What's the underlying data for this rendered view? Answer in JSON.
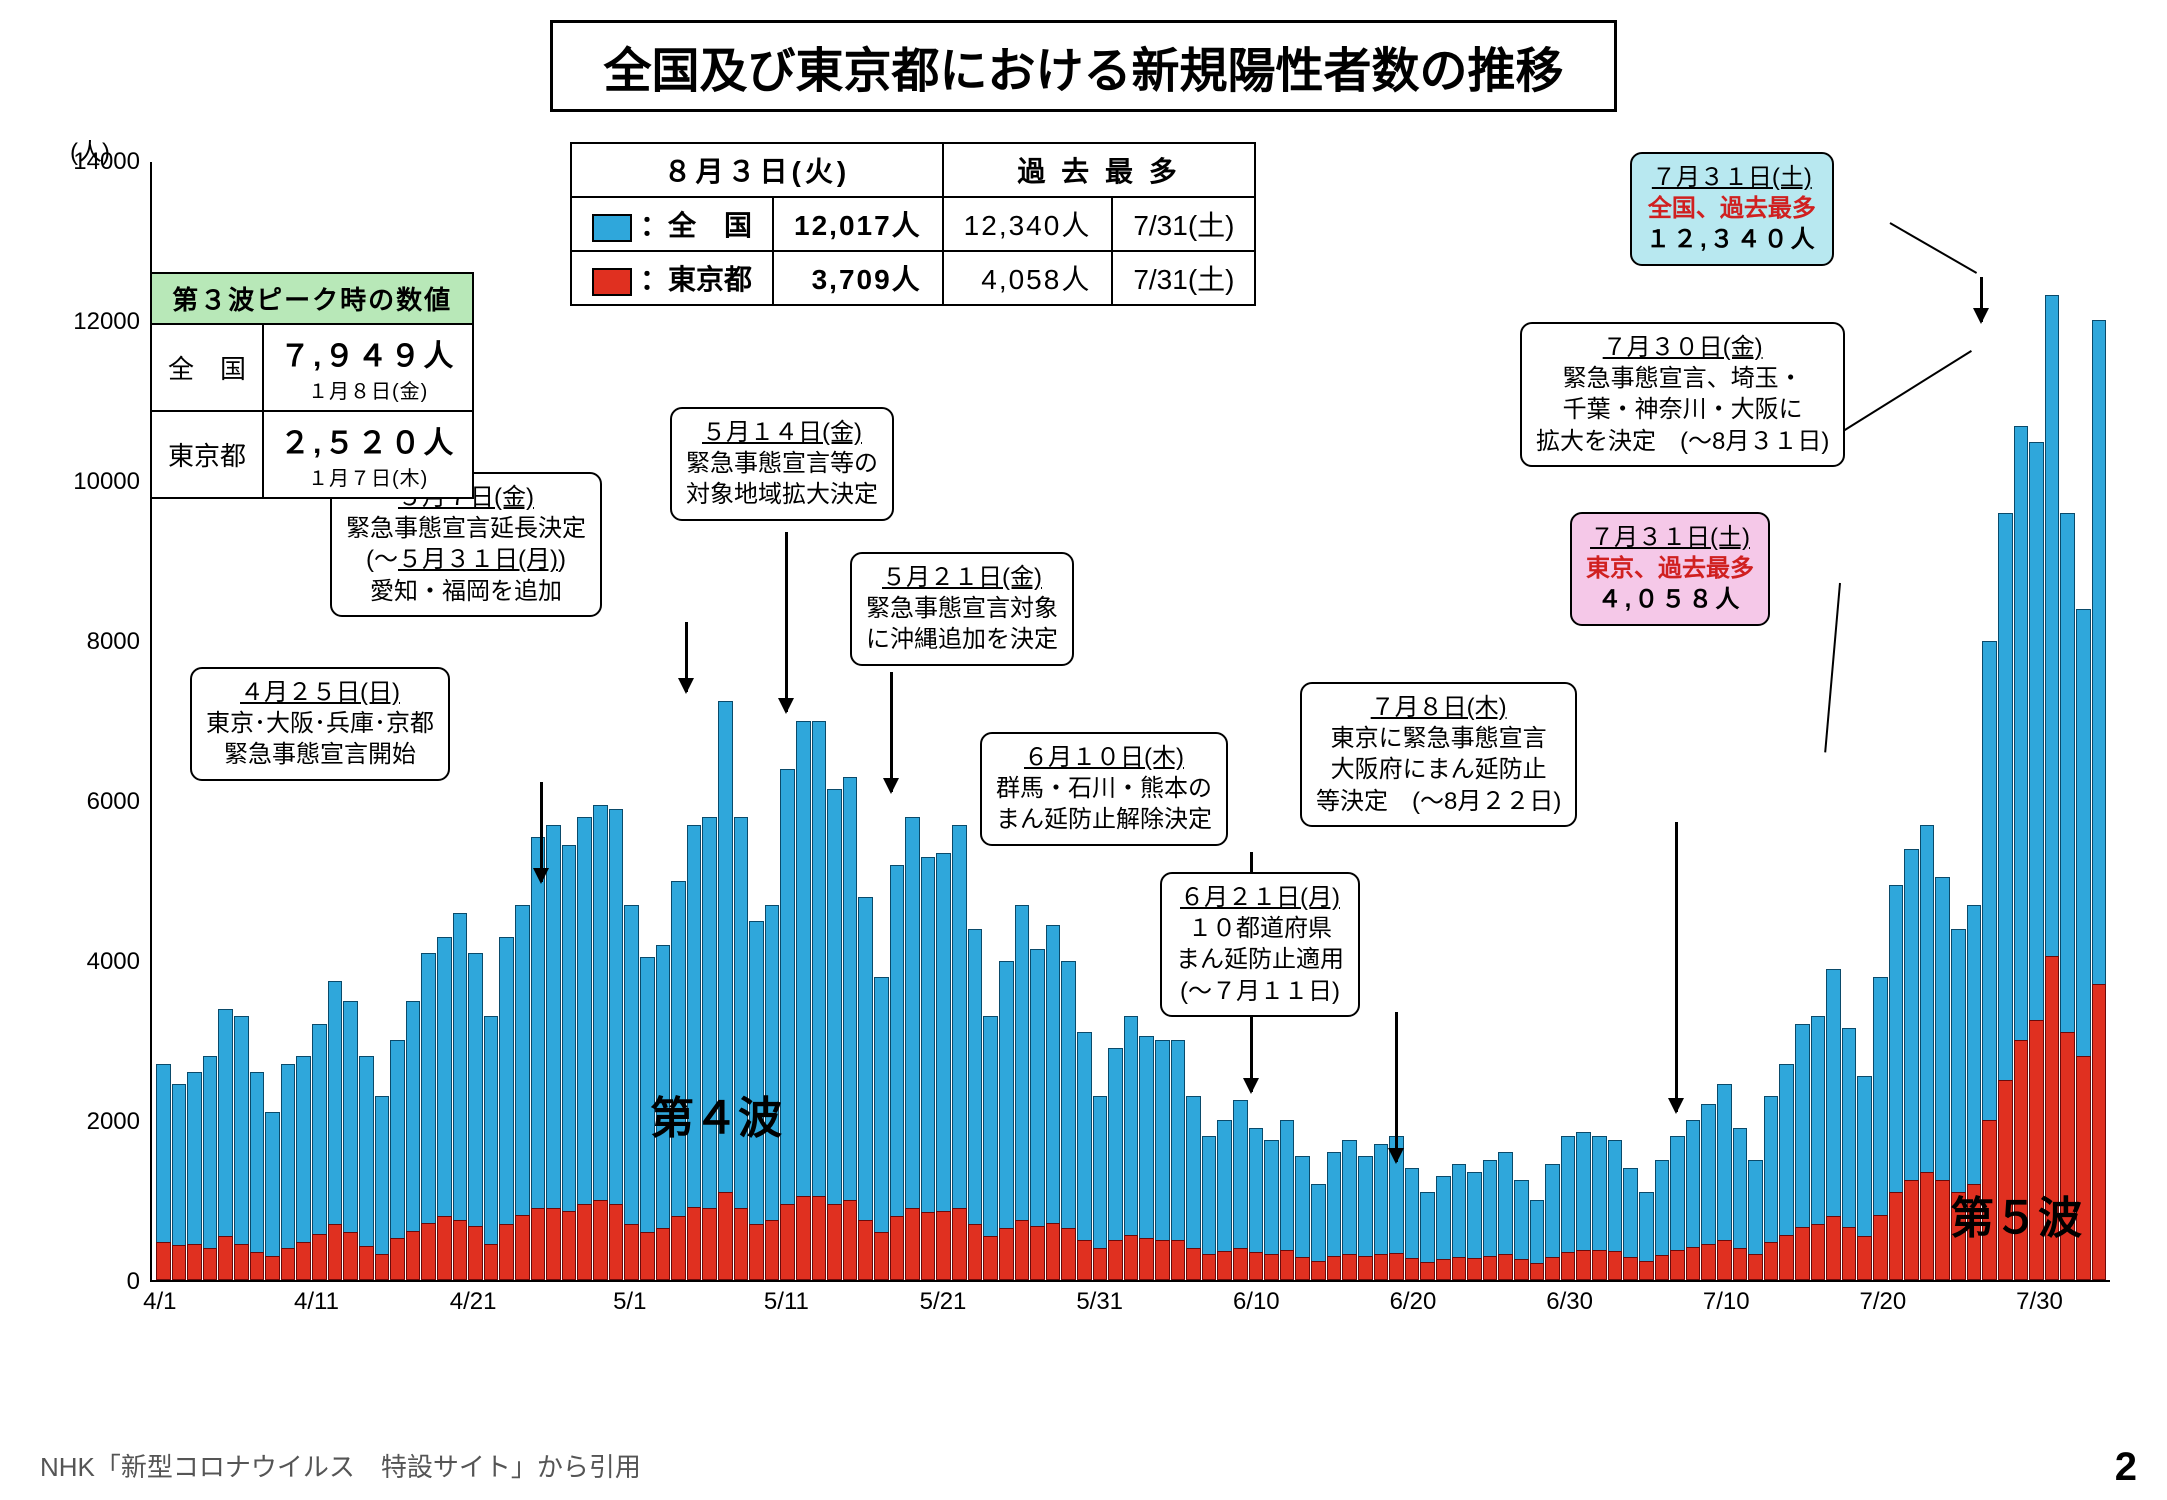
{
  "title": "全国及び東京都における新規陽性者数の推移",
  "source": "NHK「新型コロナウイルス　特設サイト」から引用",
  "page_number": "2",
  "chart": {
    "type": "bar",
    "y_axis_unit": "(人)",
    "ylim": [
      0,
      14000
    ],
    "ytick_step": 2000,
    "yticks": [
      0,
      2000,
      4000,
      6000,
      8000,
      10000,
      12000,
      14000
    ],
    "xticks": [
      "4/1",
      "4/11",
      "4/21",
      "5/1",
      "5/11",
      "5/21",
      "5/31",
      "6/10",
      "6/20",
      "6/30",
      "7/10",
      "7/20",
      "7/30"
    ],
    "national_color": "#2fa7db",
    "tokyo_color": "#e03020",
    "background_color": "#ffffff",
    "bar_border_color": "#0a4a6a",
    "wave4_label": "第４波",
    "wave5_label": "第５波",
    "national": [
      2700,
      2450,
      2600,
      2800,
      3400,
      3300,
      2600,
      2100,
      2700,
      2800,
      3200,
      3750,
      3500,
      2800,
      2300,
      3000,
      3500,
      4100,
      4300,
      4600,
      4100,
      3300,
      4300,
      4700,
      5550,
      5700,
      5450,
      5800,
      5950,
      5900,
      4700,
      4050,
      4200,
      5000,
      5700,
      5800,
      7250,
      5800,
      4500,
      4700,
      6400,
      7000,
      7000,
      6150,
      6300,
      4800,
      3800,
      5200,
      5800,
      5300,
      5350,
      5700,
      4400,
      3300,
      4000,
      4700,
      4150,
      4450,
      4000,
      3100,
      2300,
      2900,
      3300,
      3050,
      3000,
      3000,
      2300,
      1800,
      2000,
      2250,
      1900,
      1750,
      2000,
      1550,
      1200,
      1600,
      1750,
      1550,
      1700,
      1800,
      1400,
      1100,
      1300,
      1450,
      1350,
      1500,
      1600,
      1250,
      1000,
      1450,
      1800,
      1850,
      1800,
      1750,
      1400,
      1100,
      1500,
      1800,
      2000,
      2200,
      2450,
      1900,
      1500,
      2300,
      2700,
      3200,
      3300,
      3900,
      3150,
      2550,
      3800,
      4950,
      5400,
      5700,
      5050,
      4400,
      4700,
      8000,
      9600,
      10700,
      10500,
      12340,
      9600,
      8400,
      12017
    ],
    "tokyo": [
      475,
      440,
      450,
      400,
      550,
      450,
      350,
      300,
      400,
      480,
      580,
      700,
      600,
      430,
      320,
      520,
      620,
      720,
      800,
      750,
      680,
      450,
      700,
      820,
      900,
      900,
      870,
      950,
      1000,
      950,
      700,
      600,
      650,
      800,
      920,
      900,
      1100,
      900,
      700,
      750,
      950,
      1050,
      1050,
      950,
      1000,
      750,
      600,
      800,
      900,
      850,
      870,
      900,
      700,
      550,
      650,
      750,
      680,
      720,
      650,
      500,
      400,
      500,
      560,
      520,
      500,
      500,
      400,
      320,
      360,
      400,
      350,
      320,
      370,
      290,
      240,
      300,
      330,
      300,
      320,
      340,
      280,
      220,
      260,
      290,
      280,
      300,
      320,
      260,
      210,
      290,
      350,
      370,
      370,
      360,
      290,
      240,
      310,
      370,
      410,
      450,
      500,
      400,
      320,
      470,
      560,
      660,
      700,
      800,
      660,
      550,
      820,
      1100,
      1250,
      1350,
      1250,
      1100,
      1200,
      2000,
      2500,
      3000,
      3250,
      4058,
      3100,
      2800,
      3709
    ]
  },
  "peak3_table": {
    "header": "第３波ピーク時の数値",
    "row1_label": "全　国",
    "row1_val": "７,９４９人",
    "row1_date": "１月８日(金)",
    "row2_label": "東京都",
    "row2_val": "２,５２０人",
    "row2_date": "１月７日(木)"
  },
  "legend_table": {
    "col1_hdr": "８月３日(火)",
    "col2_hdr": "過 去 最 多",
    "nat_label": "：全　国",
    "nat_val": "12,017人",
    "nat_max": "12,340人",
    "nat_max_date": "7/31(土)",
    "tok_label": "：東京都",
    "tok_val": "3,709人",
    "tok_max": "4,058人",
    "tok_max_date": "7/31(土)"
  },
  "callouts": {
    "c1": {
      "date": "４月２５日(日)",
      "body": "東京･大阪･兵庫･京都\n緊急事態宣言開始"
    },
    "c2": {
      "date": "５月７日(金)",
      "body": "緊急事態宣言延長決定\n(～<u>５月３１日(月)</u>)\n愛知・福岡を追加"
    },
    "c3": {
      "date": "５月１４日(金)",
      "body": "緊急事態宣言等の\n対象地域拡大決定"
    },
    "c4": {
      "date": "５月２１日(金)",
      "body": "緊急事態宣言対象\nに沖縄追加を決定"
    },
    "c5": {
      "date": "６月１０日(木)",
      "body": "群馬・石川・熊本の\nまん延防止解除決定"
    },
    "c6": {
      "date": "６月２１日(月)",
      "body": "１０都道府県\nまん延防止適用\n(～７月１１日)"
    },
    "c7": {
      "date": "７月８日(木)",
      "body": "東京に緊急事態宣言\n大阪府にまん延防止\n等決定　(～8月２２日)"
    },
    "c8": {
      "date": "７月３０日(金)",
      "body": "緊急事態宣言、埼玉・\n千葉・神奈川・大阪に\n拡大を決定　(～8月３１日)"
    },
    "peak_nat": {
      "date": "７月３１日(土)",
      "line1": "全国、過去最多",
      "line2": "１２,３４０人"
    },
    "peak_tok": {
      "date": "７月３１日(土)",
      "line1": "東京、過去最多",
      "line2": "４,０５８人"
    }
  }
}
